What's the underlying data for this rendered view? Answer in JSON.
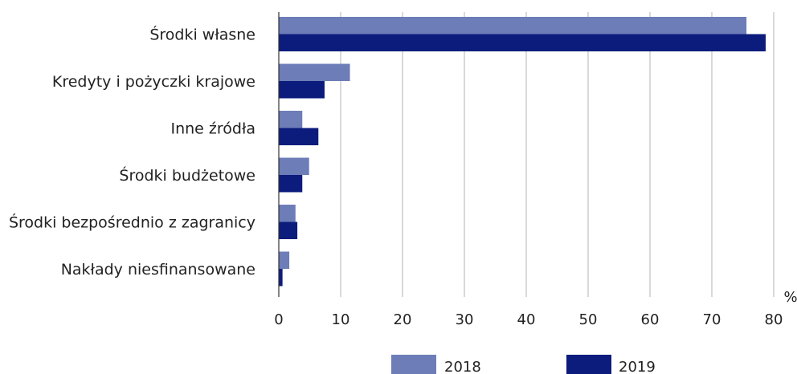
{
  "chart_data": {
    "type": "bar",
    "orientation": "horizontal",
    "categories": [
      "Środki własne",
      "Kredyty i pożyczki krajowe",
      "Inne źródła",
      "Środki budżetowe",
      "Środki bezpośrednio z zagranicy",
      "Nakłady niesfinansowane"
    ],
    "series": [
      {
        "name": "2018",
        "color": "#6d7db8",
        "values": [
          75.6,
          11.5,
          3.8,
          4.9,
          2.7,
          1.7
        ]
      },
      {
        "name": "2019",
        "color": "#0c1c7c",
        "values": [
          78.7,
          7.4,
          6.4,
          3.8,
          3.0,
          0.6
        ]
      }
    ],
    "unit": "%",
    "xlim": [
      0,
      80
    ],
    "xticks": [
      "0",
      "10",
      "20",
      "30",
      "40",
      "50",
      "60",
      "70",
      "80"
    ],
    "grid": "vertical",
    "legend": "bottom"
  }
}
